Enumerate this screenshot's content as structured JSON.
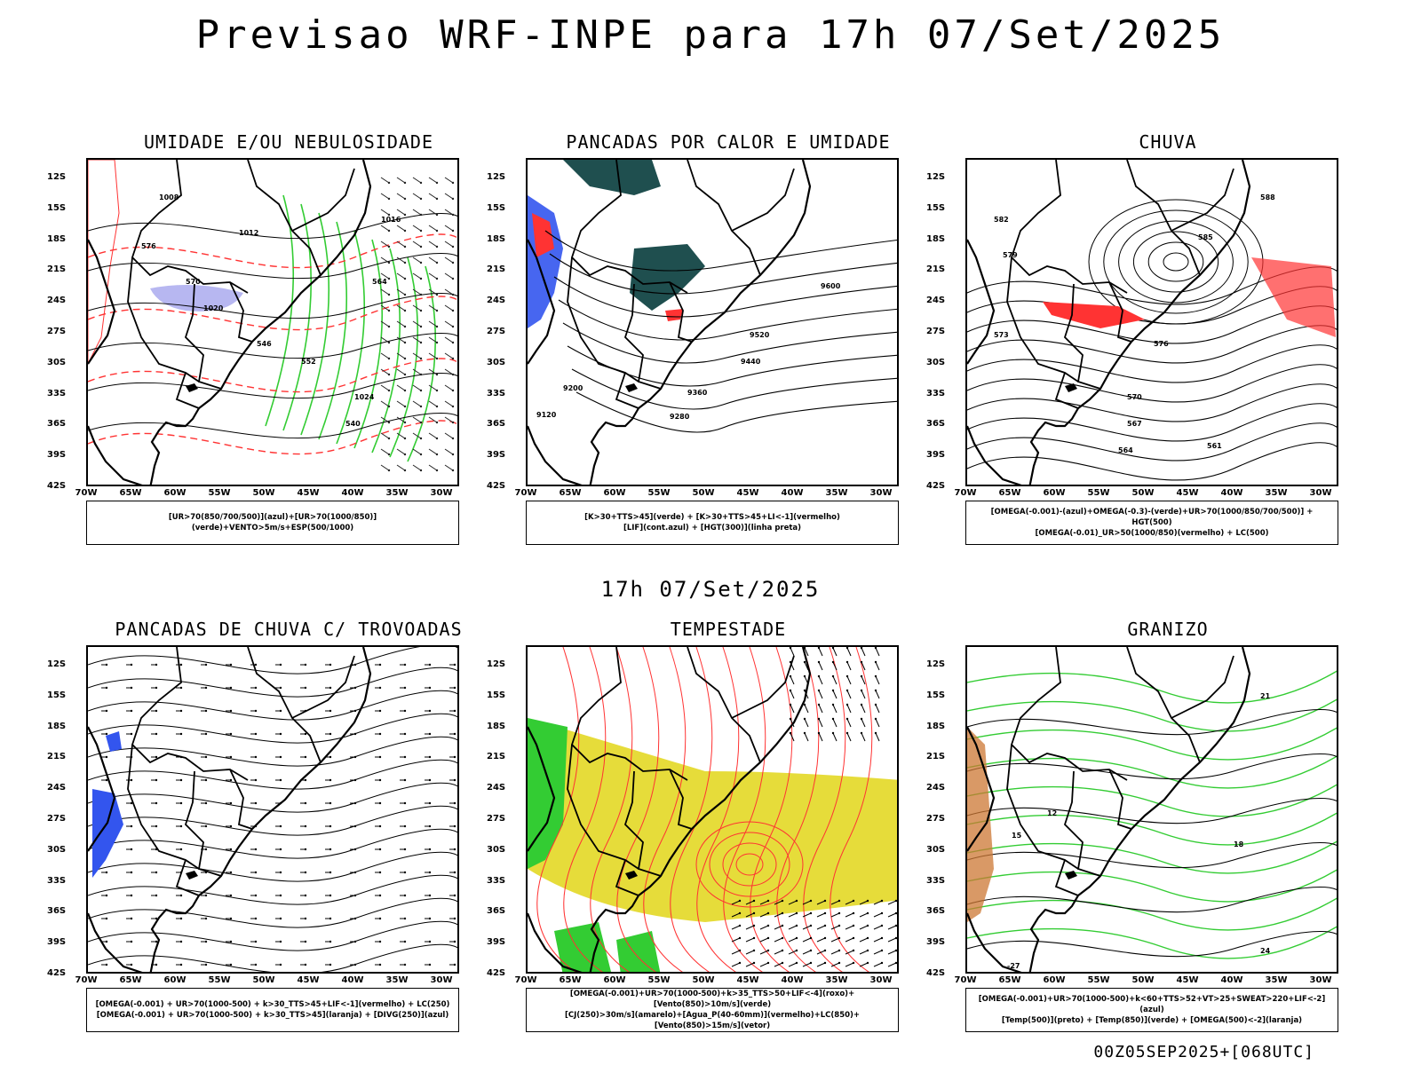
{
  "header": {
    "title": "Previsao WRF-INPE  para 17h 07/Set/2025",
    "subtitle": "17h 07/Set/2025",
    "stamp": "00Z05SEP2025+[068UTC]"
  },
  "axes": {
    "lat_labels": [
      "12S",
      "15S",
      "18S",
      "21S",
      "24S",
      "27S",
      "30S",
      "33S",
      "36S",
      "39S",
      "42S"
    ],
    "lon_labels": [
      "70W",
      "65W",
      "60W",
      "55W",
      "50W",
      "45W",
      "40W",
      "35W",
      "30W"
    ]
  },
  "colors": {
    "humidity_green": "#33cc33",
    "humidity_blue": "#aaaaee",
    "instability_red": "#ff3333",
    "cloud_teal": "#1f4f4f",
    "storm_yellow": "#e6dc3a",
    "convection_blue": "#3355ee",
    "hail_orange": "#cc7733"
  },
  "panels": [
    {
      "title": "UMIDADE E/OU NEBULOSIDADE",
      "legend": [
        "[UR>70(850/700/500)](azul)+[UR>70(1000/850)](verde)+VENTO>5m/s+ESP(500/1000)"
      ],
      "contour_labels": [
        "1008",
        "1012",
        "1016",
        "1020",
        "1024",
        "570",
        "576",
        "552",
        "564",
        "546",
        "540"
      ]
    },
    {
      "title": "PANCADAS POR CALOR E UMIDADE",
      "legend": [
        "[K>30+TTS>45](verde) + [K>30+TTS>45+LI<-1](vermelho)",
        "[LIF](cont.azul) + [HGT(300)](linha preta)"
      ],
      "contour_labels": [
        "9600",
        "9520",
        "9440",
        "9360",
        "9280",
        "9200",
        "9120"
      ]
    },
    {
      "title": "CHUVA",
      "legend": [
        "[OMEGA(-0.001)-(azul)+OMEGA(-0.3)-(verde)+UR>70(1000/850/700/500)] + HGT(500)",
        "[OMEGA(-0.01)_UR>50(1000/850)(vermelho) + LC(500)"
      ],
      "contour_labels": [
        "588",
        "585",
        "582",
        "579",
        "576",
        "573",
        "570",
        "567",
        "564",
        "561"
      ]
    },
    {
      "title": "PANCADAS DE CHUVA C/ TROVOADAS",
      "legend": [
        "[OMEGA(-0.001) + UR>70(1000-500) + k>30_TTS>45+LIF<-1](vermelho) + LC(250)",
        "[OMEGA(-0.001) + UR>70(1000-500) + k>30_TTS>45](laranja) + [DIVG(250)](azul)"
      ],
      "contour_labels": []
    },
    {
      "title": "TEMPESTADE",
      "legend": [
        "[OMEGA(-0.001)+UR>70(1000-500)+k>35_TTS>50+LIF<-4](roxo)+[Vento(850)>10m/s](verde)",
        "[CJ(250)>30m/s](amarelo)+[Agua_P(40-60mm)](vermelho)+LC(850)+[Vento(850)>15m/s](vetor)"
      ],
      "contour_labels": []
    },
    {
      "title": "GRANIZO",
      "legend": [
        "[OMEGA(-0.001)+UR>70(1000-500)+k<60+TTS>52+VT>25+SWEAT>220+LIF<-2](azul)",
        "[Temp(500)](preto) + [Temp(850)](verde) + [OMEGA(500)<-2](laranja)"
      ],
      "contour_labels": [
        "12",
        "15",
        "18",
        "21",
        "24",
        "-27"
      ]
    }
  ]
}
